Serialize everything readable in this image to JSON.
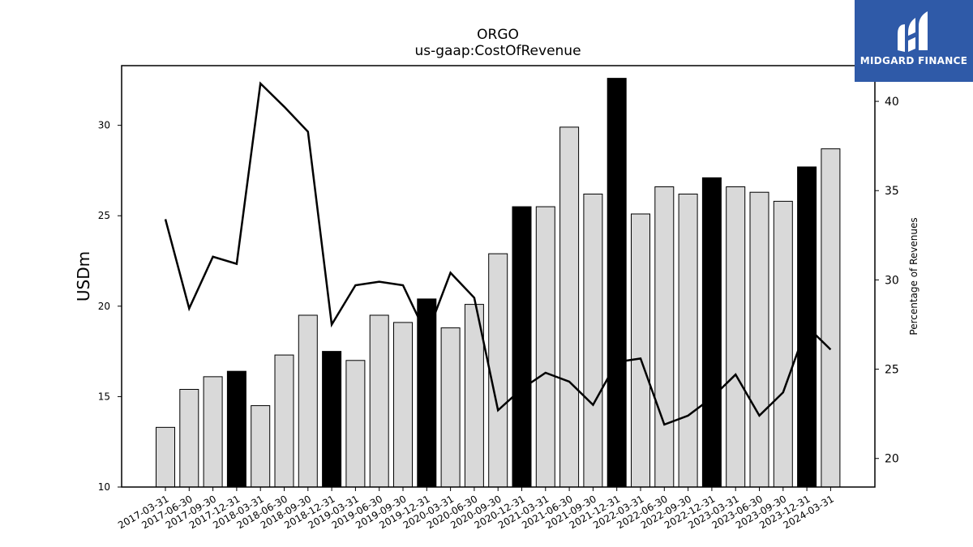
{
  "logo": {
    "text": "MIDGARD FINANCE"
  },
  "chart_data": {
    "type": "bar",
    "title": "ORGO",
    "subtitle": "us-gaap:CostOfRevenue",
    "ylabel": "USDm",
    "y2label": "Percentage of Revenues",
    "ylim": [
      10,
      33.3
    ],
    "y2lim": [
      18.4,
      42.0
    ],
    "yticks": [
      10,
      15,
      20,
      25,
      30
    ],
    "y2ticks": [
      20,
      25,
      30,
      35,
      40
    ],
    "categories": [
      "2017-03-31",
      "2017-06-30",
      "2017-09-30",
      "2017-12-31",
      "2018-03-31",
      "2018-06-30",
      "2018-09-30",
      "2018-12-31",
      "2019-03-31",
      "2019-06-30",
      "2019-09-30",
      "2019-12-31",
      "2020-03-31",
      "2020-06-30",
      "2020-09-30",
      "2020-12-31",
      "2021-03-31",
      "2021-06-30",
      "2021-09-30",
      "2021-12-31",
      "2022-03-31",
      "2022-06-30",
      "2022-09-30",
      "2022-12-31",
      "2023-03-31",
      "2023-06-30",
      "2023-09-30",
      "2023-12-31",
      "2024-03-31"
    ],
    "series": [
      {
        "kind": "bar",
        "values": [
          13.3,
          15.4,
          16.1,
          16.4,
          14.5,
          17.3,
          19.5,
          17.5,
          17.0,
          19.5,
          19.1,
          20.4,
          18.8,
          20.1,
          22.9,
          25.5,
          25.5,
          29.9,
          26.2,
          32.6,
          25.1,
          26.6,
          26.2,
          27.1,
          26.6,
          26.3,
          25.8,
          27.7,
          28.7
        ],
        "highlight": [
          3,
          7,
          11,
          15,
          19,
          23,
          27
        ],
        "colors": {
          "bar": "#d9d9d9",
          "highlight": "#000000",
          "edge": "#000000"
        }
      },
      {
        "kind": "line",
        "axis": "right",
        "values": [
          33.4,
          28.4,
          31.3,
          30.9,
          41.0,
          39.7,
          38.3,
          27.5,
          29.7,
          29.9,
          29.7,
          26.9,
          30.4,
          29.0,
          22.7,
          23.9,
          24.8,
          24.3,
          23.0,
          25.4,
          25.6,
          21.9,
          22.4,
          23.4,
          24.7,
          22.4,
          23.7,
          27.4,
          26.1
        ],
        "colors": {
          "line": "#000000"
        }
      }
    ]
  }
}
